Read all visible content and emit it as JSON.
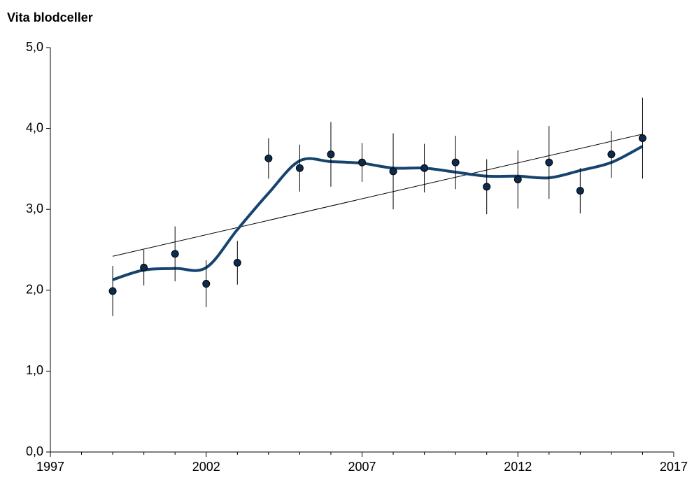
{
  "chart_data": {
    "type": "line",
    "title": "Vita blodceller",
    "x": [
      1999,
      2000,
      2001,
      2002,
      2003,
      2004,
      2005,
      2006,
      2007,
      2008,
      2009,
      2010,
      2011,
      2012,
      2013,
      2014,
      2015,
      2016
    ],
    "series": [
      {
        "kind": "points",
        "color": "#0d2b4e",
        "values": [
          1.99,
          2.28,
          2.45,
          2.08,
          2.34,
          3.63,
          3.51,
          3.68,
          3.58,
          3.47,
          3.51,
          3.58,
          3.28,
          3.37,
          3.58,
          3.23,
          3.68,
          3.88
        ],
        "errors": [
          0.31,
          0.22,
          0.34,
          0.29,
          0.27,
          0.25,
          0.29,
          0.4,
          0.24,
          0.47,
          0.3,
          0.33,
          0.34,
          0.36,
          0.45,
          0.28,
          0.29,
          0.5
        ]
      },
      {
        "kind": "smooth",
        "color": "#174370",
        "values": [
          2.13,
          2.25,
          2.27,
          2.28,
          2.75,
          3.2,
          3.6,
          3.59,
          3.57,
          3.51,
          3.51,
          3.46,
          3.41,
          3.41,
          3.39,
          3.48,
          3.58,
          3.78
        ]
      },
      {
        "kind": "trend",
        "color": "#000000",
        "x": [
          1999,
          2016
        ],
        "values": [
          2.42,
          3.93
        ]
      }
    ],
    "xlim": [
      1997,
      2017
    ],
    "xticks": [
      1997,
      2002,
      2007,
      2012,
      2017
    ],
    "xminorticks": [
      1998,
      1999,
      2000,
      2001,
      2003,
      2004,
      2005,
      2006,
      2008,
      2009,
      2010,
      2011,
      2013,
      2014,
      2015,
      2016
    ],
    "ylim": [
      0,
      5
    ],
    "yticks": [
      {
        "value": 0,
        "label": "0,0"
      },
      {
        "value": 1,
        "label": "1,0"
      },
      {
        "value": 2,
        "label": "2,0"
      },
      {
        "value": 3,
        "label": "3,0"
      },
      {
        "value": 4,
        "label": "4,0"
      },
      {
        "value": 5,
        "label": "5,0"
      }
    ]
  }
}
